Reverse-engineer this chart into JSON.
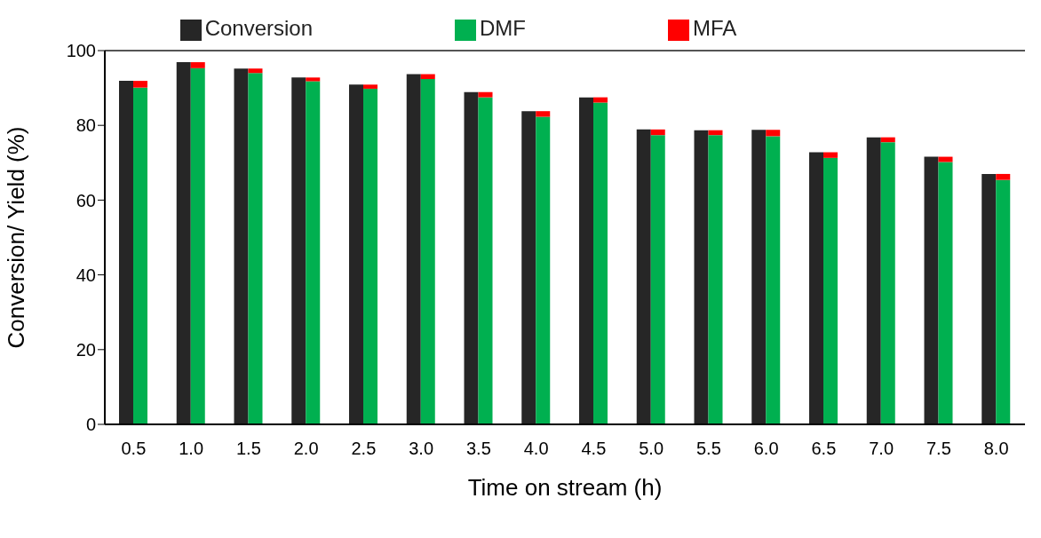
{
  "chart_data": {
    "type": "bar",
    "xlabel": "Time on stream (h)",
    "ylabel": "Conversion/ Yield (%)",
    "categories": [
      "0.5",
      "1.0",
      "1.5",
      "2.0",
      "2.5",
      "3.0",
      "3.5",
      "4.0",
      "4.5",
      "5.0",
      "5.5",
      "6.0",
      "6.5",
      "7.0",
      "7.5",
      "8.0"
    ],
    "series": [
      {
        "name": "Conversion",
        "color": "#262626",
        "values": [
          91.9,
          96.9,
          95.2,
          92.8,
          90.9,
          93.7,
          88.9,
          83.8,
          87.5,
          78.9,
          78.7,
          78.8,
          72.8,
          76.8,
          71.6,
          67.0
        ]
      },
      {
        "name": "MFA",
        "color": "#ff0000",
        "base": [
          90.1,
          95.3,
          94.0,
          91.8,
          89.8,
          92.4,
          87.5,
          82.3,
          86.1,
          77.4,
          77.4,
          77.1,
          71.3,
          75.5,
          70.2,
          65.4
        ],
        "values": [
          1.8,
          1.6,
          1.2,
          1.0,
          1.1,
          1.3,
          1.4,
          1.5,
          1.4,
          1.5,
          1.3,
          1.7,
          1.5,
          1.3,
          1.4,
          1.6
        ]
      },
      {
        "name": "DMF",
        "color": "#00b050",
        "values": [
          90.1,
          95.3,
          94.0,
          91.8,
          89.8,
          92.4,
          87.5,
          82.3,
          86.1,
          77.4,
          77.4,
          77.1,
          71.3,
          75.5,
          70.2,
          65.4
        ]
      }
    ],
    "ylim": [
      0,
      100
    ],
    "yticks": [
      0,
      20,
      40,
      60,
      80,
      100
    ],
    "legend": "top"
  }
}
